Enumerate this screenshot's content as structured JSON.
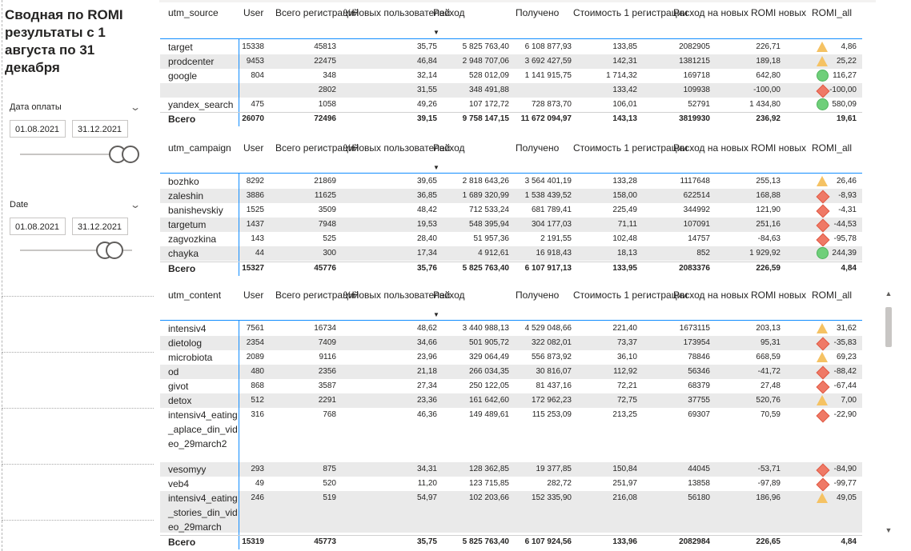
{
  "title": "Сводная по ROMI результаты с 1 августа по 31 декабря",
  "slicer1": {
    "label": "Дата оплаты",
    "start": "01.08.2021",
    "end": "31.12.2021"
  },
  "slicer2": {
    "label": "Date",
    "start": "01.08.2021",
    "end": "31.12.2021"
  },
  "icons": {
    "triangle": "warning-triangle-icon",
    "diamond": "red-diamond-icon",
    "circle": "green-circle-icon"
  },
  "colors": {
    "accent": "#118dff",
    "triangle": "#f5c263",
    "diamond": "#ef7966",
    "circle": "#6fcf7a"
  },
  "tables": [
    {
      "headers": [
        "utm_source",
        "User",
        "Всего регистраций",
        "%Новых пользователей",
        "Расход",
        "Получено",
        "Стоимость 1 регистрации",
        "Расход на новых",
        "ROMI новых",
        "ROMI_all"
      ],
      "rows": [
        {
          "name": "target",
          "v": [
            "15338",
            "45813",
            "35,75",
            "5 825 763,40",
            "6 108 877,93",
            "133,85",
            "2082905",
            "226,71",
            "4,86"
          ],
          "icon": "triangle"
        },
        {
          "name": "prodcenter",
          "v": [
            "9453",
            "22475",
            "46,84",
            "2 948 707,06",
            "3 692 427,59",
            "142,31",
            "1381215",
            "189,18",
            "25,22"
          ],
          "icon": "triangle"
        },
        {
          "name": "google",
          "v": [
            "804",
            "348",
            "32,14",
            "528 012,09",
            "1 141 915,75",
            "1 714,32",
            "169718",
            "642,80",
            "116,27"
          ],
          "icon": "circle"
        },
        {
          "name": "",
          "v": [
            "",
            "2802",
            "31,55",
            "348 491,88",
            "",
            "133,42",
            "109938",
            "-100,00",
            "-100,00"
          ],
          "icon": "diamond"
        },
        {
          "name": "yandex_search",
          "v": [
            "475",
            "1058",
            "49,26",
            "107 172,72",
            "728 873,70",
            "106,01",
            "52791",
            "1 434,80",
            "580,09"
          ],
          "icon": "circle"
        }
      ],
      "total": {
        "name": "Всего",
        "v": [
          "26070",
          "72496",
          "39,15",
          "9 758 147,15",
          "11 672 094,97",
          "143,13",
          "3819930",
          "236,92",
          "19,61"
        ]
      }
    },
    {
      "headers": [
        "utm_campaign",
        "User",
        "Всего регистраций",
        "%Новых пользователей",
        "Расход",
        "Получено",
        "Стоимость 1 регистрации",
        "Расход на новых",
        "ROMI новых",
        "ROMI_all"
      ],
      "rows": [
        {
          "name": "bozhko",
          "v": [
            "8292",
            "21869",
            "39,65",
            "2 818 643,26",
            "3 564 401,19",
            "133,28",
            "1117648",
            "255,13",
            "26,46"
          ],
          "icon": "triangle"
        },
        {
          "name": "zaleshin",
          "v": [
            "3886",
            "11625",
            "36,85",
            "1 689 320,99",
            "1 538 439,52",
            "158,00",
            "622514",
            "168,88",
            "-8,93"
          ],
          "icon": "diamond"
        },
        {
          "name": "banishevskiy",
          "v": [
            "1525",
            "3509",
            "48,42",
            "712 533,24",
            "681 789,41",
            "225,49",
            "344992",
            "121,90",
            "-4,31"
          ],
          "icon": "diamond"
        },
        {
          "name": "targetum",
          "v": [
            "1437",
            "7948",
            "19,53",
            "548 395,94",
            "304 177,03",
            "71,11",
            "107091",
            "251,16",
            "-44,53"
          ],
          "icon": "diamond"
        },
        {
          "name": "zagvozkina",
          "v": [
            "143",
            "525",
            "28,40",
            "51 957,36",
            "2 191,55",
            "102,48",
            "14757",
            "-84,63",
            "-95,78"
          ],
          "icon": "diamond"
        },
        {
          "name": "chayka",
          "v": [
            "44",
            "300",
            "17,34",
            "4 912,61",
            "16 918,43",
            "18,13",
            "852",
            "1 929,92",
            "244,39"
          ],
          "icon": "circle"
        }
      ],
      "total": {
        "name": "Всего",
        "v": [
          "15327",
          "45776",
          "35,76",
          "5 825 763,40",
          "6 107 917,13",
          "133,95",
          "2083376",
          "226,59",
          "4,84"
        ]
      }
    },
    {
      "headers": [
        "utm_content",
        "User",
        "Всего регистраций",
        "%Новых пользователей",
        "Расход",
        "Получено",
        "Стоимость 1 регистрации",
        "Расход на новых",
        "ROMI новых",
        "ROMI_all"
      ],
      "rows": [
        {
          "name": "intensiv4",
          "v": [
            "7561",
            "16734",
            "48,62",
            "3 440 988,13",
            "4 529 048,66",
            "221,40",
            "1673115",
            "203,13",
            "31,62"
          ],
          "icon": "triangle"
        },
        {
          "name": "dietolog",
          "v": [
            "2354",
            "7409",
            "34,66",
            "501 905,72",
            "322 082,01",
            "73,37",
            "173954",
            "95,31",
            "-35,83"
          ],
          "icon": "diamond"
        },
        {
          "name": "microbiota",
          "v": [
            "2089",
            "9116",
            "23,96",
            "329 064,49",
            "556 873,92",
            "36,10",
            "78846",
            "668,59",
            "69,23"
          ],
          "icon": "triangle"
        },
        {
          "name": "od",
          "v": [
            "480",
            "2356",
            "21,18",
            "266 034,35",
            "30 816,07",
            "112,92",
            "56346",
            "-41,72",
            "-88,42"
          ],
          "icon": "diamond"
        },
        {
          "name": "givot",
          "v": [
            "868",
            "3587",
            "27,34",
            "250 122,05",
            "81 437,16",
            "72,21",
            "68379",
            "27,48",
            "-67,44"
          ],
          "icon": "diamond"
        },
        {
          "name": "detox",
          "v": [
            "512",
            "2291",
            "23,36",
            "161 642,60",
            "172 962,23",
            "72,75",
            "37755",
            "520,76",
            "7,00"
          ],
          "icon": "triangle"
        },
        {
          "name": "intensiv4_eating_aplace_din_video_29march2",
          "v": [
            "316",
            "768",
            "46,36",
            "149 489,61",
            "115 253,09",
            "213,25",
            "69307",
            "70,59",
            "-22,90"
          ],
          "icon": "diamond"
        },
        {
          "name": "vesomyy",
          "v": [
            "293",
            "875",
            "34,31",
            "128 362,85",
            "19 377,85",
            "150,84",
            "44045",
            "-53,71",
            "-84,90"
          ],
          "icon": "diamond"
        },
        {
          "name": "veb4",
          "v": [
            "49",
            "520",
            "11,20",
            "123 715,85",
            "282,72",
            "251,97",
            "13858",
            "-97,89",
            "-99,77"
          ],
          "icon": "diamond"
        },
        {
          "name": "intensiv4_eating_stories_din_video_29march",
          "v": [
            "246",
            "519",
            "54,97",
            "102 203,66",
            "152 335,90",
            "216,08",
            "56180",
            "186,96",
            "49,05"
          ],
          "icon": "triangle"
        }
      ],
      "total": {
        "name": "Всего",
        "v": [
          "15319",
          "45773",
          "35,75",
          "5 825 763,40",
          "6 107 924,56",
          "133,96",
          "2082984",
          "226,65",
          "4,84"
        ]
      }
    }
  ],
  "scrollbar": {
    "up": "▲",
    "down": "▼"
  }
}
